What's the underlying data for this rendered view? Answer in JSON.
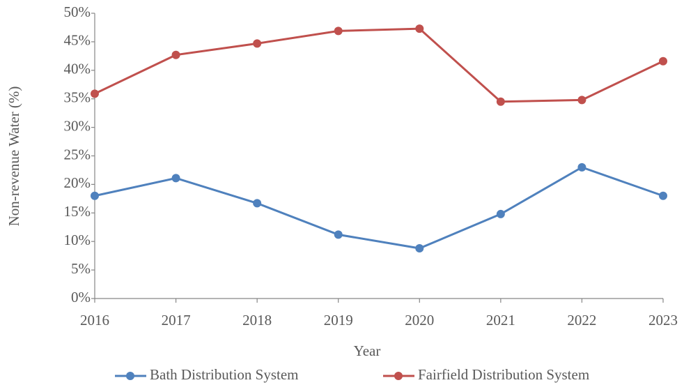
{
  "chart_data": {
    "type": "line",
    "x_label": "Year",
    "y_label": "Non-revenue Water (%)",
    "categories": [
      "2016",
      "2017",
      "2018",
      "2019",
      "2020",
      "2021",
      "2022",
      "2023"
    ],
    "series": [
      {
        "name": "Bath Distribution System",
        "color": "#4f81bd",
        "values": [
          18,
          21.1,
          16.7,
          11.2,
          8.8,
          14.8,
          23,
          18
        ]
      },
      {
        "name": "Fairfield Distribution System",
        "color": "#c0504d",
        "values": [
          35.9,
          42.7,
          44.7,
          46.9,
          47.3,
          34.5,
          34.8,
          41.6
        ]
      }
    ],
    "ylim": [
      0,
      50
    ],
    "yticks": [
      {
        "value": 0,
        "label": "0%"
      },
      {
        "value": 5,
        "label": "5%"
      },
      {
        "value": 10,
        "label": "10%"
      },
      {
        "value": 15,
        "label": "15%"
      },
      {
        "value": 20,
        "label": "20%"
      },
      {
        "value": 25,
        "label": "25%"
      },
      {
        "value": 30,
        "label": "30%"
      },
      {
        "value": 35,
        "label": "35%"
      },
      {
        "value": 40,
        "label": "40%"
      },
      {
        "value": 45,
        "label": "45%"
      },
      {
        "value": 50,
        "label": "50%"
      }
    ],
    "grid": false,
    "legend": "bottom"
  }
}
